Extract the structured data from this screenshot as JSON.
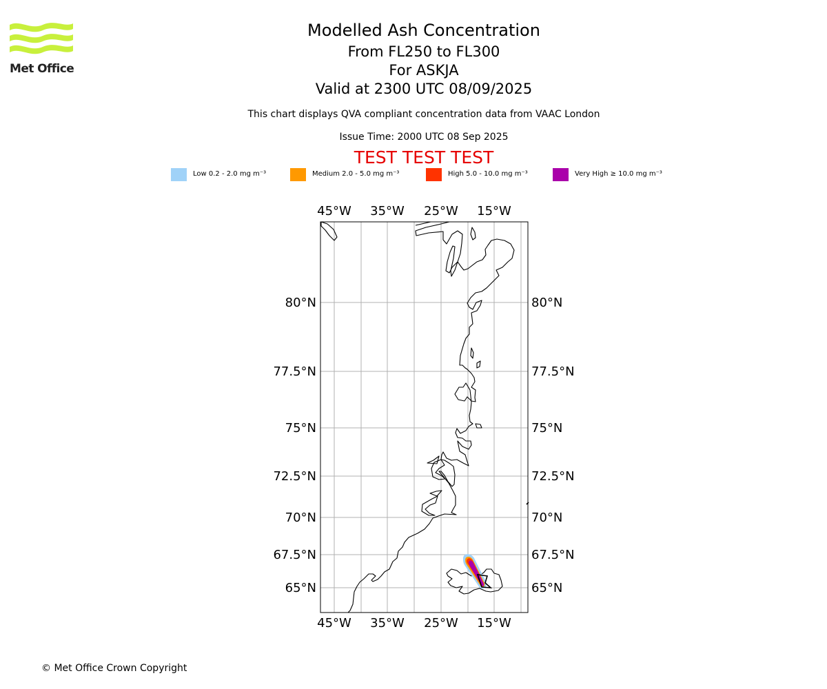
{
  "logo": {
    "text": "Met Office",
    "color": "#c8f03c"
  },
  "titles": {
    "main": "Modelled Ash Concentration",
    "levels": "From FL250 to FL300",
    "volcano": "For ASKJA",
    "valid": "Valid at 2300 UTC 08/09/2025",
    "compliance": "This chart displays QVA compliant concentration data from VAAC London",
    "issue": "Issue Time: 2000 UTC 08 Sep 2025",
    "test_banner": "TEST TEST TEST"
  },
  "legend": [
    {
      "label": "Low 0.2 - 2.0 mg m⁻³",
      "color": "#a0d2f8"
    },
    {
      "label": "Medium 2.0 - 5.0 mg m⁻³",
      "color": "#ff9900"
    },
    {
      "label": "High 5.0 - 10.0 mg m⁻³",
      "color": "#ff3300"
    },
    {
      "label": "Very High ≥ 10.0 mg m⁻³",
      "color": "#aa00aa"
    }
  ],
  "map": {
    "lon_labels": [
      "45°W",
      "35°W",
      "25°W",
      "15°W"
    ],
    "lat_labels": [
      "80°N",
      "77.5°N",
      "75°N",
      "72.5°N",
      "70°N",
      "67.5°N",
      "65°N"
    ],
    "grid": true
  },
  "footer": "© Met Office Crown Copyright"
}
